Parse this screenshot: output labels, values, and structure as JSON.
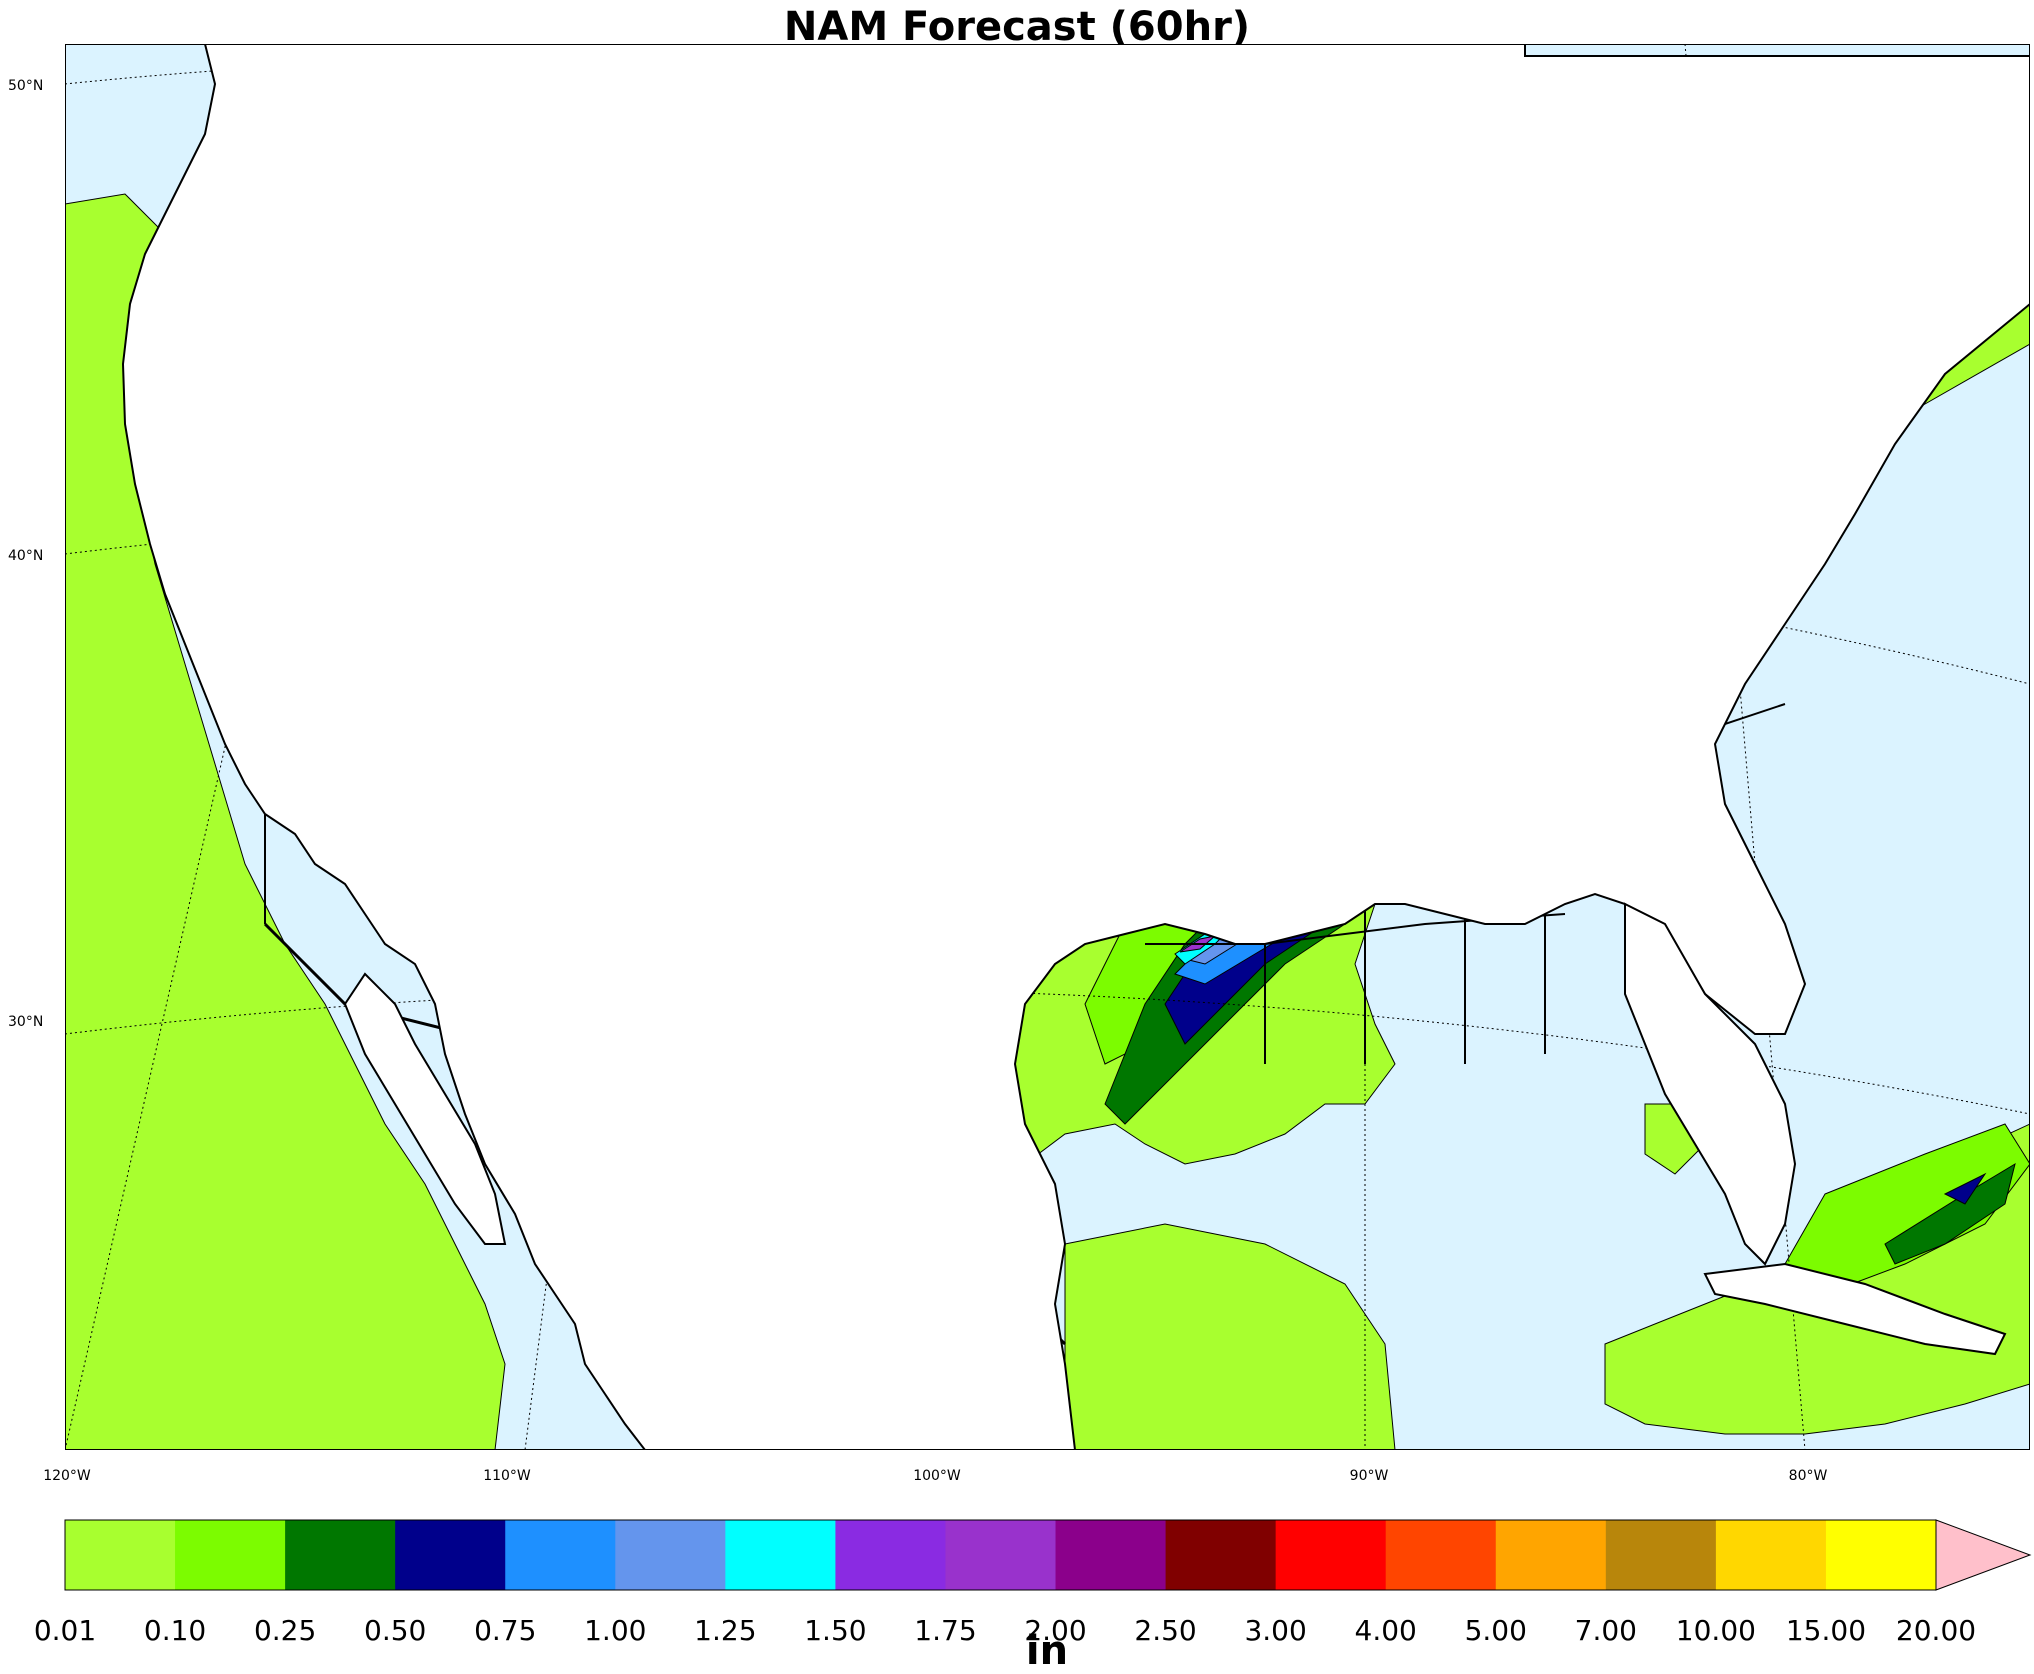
{
  "title": "NAM Forecast (60hr)",
  "units": "in",
  "colors": {
    "ocean": "#dbf3ff",
    "land": "#ffffff",
    "c0": "#a8ff2f",
    "c1": "#7cfc00",
    "c2": "#007700",
    "c3": "#00008b",
    "c4": "#1e90ff",
    "c5": "#6495ed",
    "c6": "#00ffff",
    "c7": "#8a2be2",
    "c8": "#9932cc",
    "c9": "#8b008b",
    "extend": "#ffc0cb"
  },
  "latitude_labels": [
    "50°N",
    "40°N",
    "30°N"
  ],
  "longitude_labels": [
    "120°W",
    "110°W",
    "100°W",
    "90°W",
    "80°W"
  ],
  "colorbar": {
    "ticks": [
      "0.01",
      "0.10",
      "0.25",
      "0.50",
      "0.75",
      "1.00",
      "1.25",
      "1.50",
      "1.75",
      "2.00",
      "2.50",
      "3.00",
      "4.00",
      "5.00",
      "7.00",
      "10.00",
      "15.00",
      "20.00"
    ],
    "colors": [
      "#a8ff2f",
      "#7cfc00",
      "#007700",
      "#00008b",
      "#1e90ff",
      "#6495ed",
      "#00ffff",
      "#8a2be2",
      "#9932cc",
      "#8b008b",
      "#800000",
      "#ff0000",
      "#ff4500",
      "#ffa500",
      "#b8860b",
      "#ffd700",
      "#ffff00"
    ],
    "extend_color": "#ffc0cb"
  }
}
